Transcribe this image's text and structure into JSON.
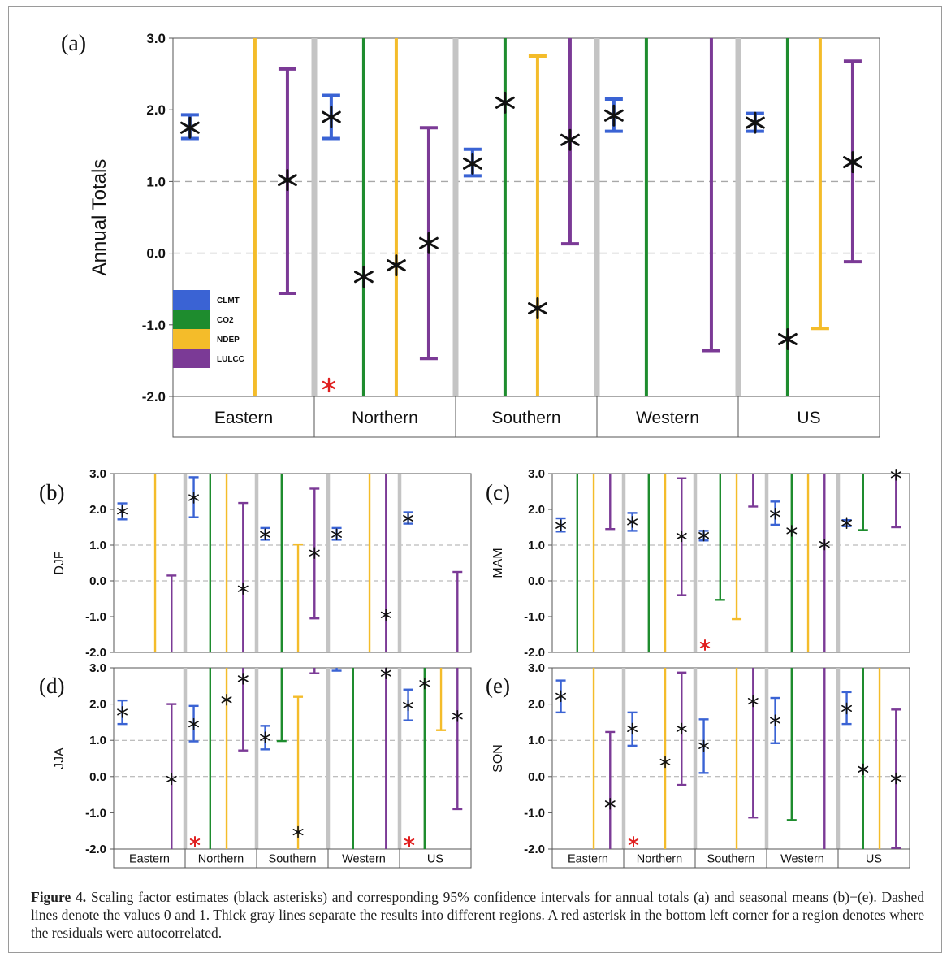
{
  "colors": {
    "CLMT": "#3a63d4",
    "CO2": "#1e8c2e",
    "NDEP": "#f4bc2a",
    "LULCC": "#7b3a96",
    "separator": "#c4c4c4",
    "asterisk": "#111111",
    "autocorr": "#e02020"
  },
  "caption": {
    "label": "Figure 4.",
    "text": "Scaling factor estimates (black asterisks) and corresponding 95% confidence intervals for annual totals (a) and seasonal means (b)−(e). Dashed lines denote the values 0 and 1. Thick gray lines separate the results into different regions. A red asterisk in the bottom left corner for a region denotes where the residuals were autocorrelated."
  },
  "chart_data": [
    {
      "id": "a",
      "panel_label": "(a)",
      "type": "errorbar",
      "ylabel": "Annual Totals",
      "ylim": [
        -2,
        3
      ],
      "yticks": [
        "-2.0",
        "-1.0",
        "0.0",
        "1.0",
        "2.0",
        "3.0"
      ],
      "reference_lines": [
        0,
        1
      ],
      "categories": [
        "Eastern",
        "Northern",
        "Southern",
        "Western",
        "US"
      ],
      "legend": {
        "placement": "bottom-left",
        "entries": [
          "CLMT",
          "CO2",
          "NDEP",
          "LULCC"
        ]
      },
      "autocorrelated": [
        false,
        true,
        false,
        false,
        false
      ],
      "series": [
        {
          "name": "CLMT",
          "est": [
            1.75,
            1.9,
            1.25,
            1.92,
            1.82
          ],
          "low": [
            1.6,
            1.6,
            1.08,
            1.7,
            1.7
          ],
          "high": [
            1.93,
            2.2,
            1.45,
            2.15,
            1.95
          ]
        },
        {
          "name": "CO2",
          "est": [
            null,
            -0.33,
            2.1,
            null,
            -1.2
          ],
          "low": [
            null,
            -2,
            -2,
            -2,
            -2
          ],
          "high": [
            null,
            3,
            3,
            3,
            3
          ]
        },
        {
          "name": "NDEP",
          "est": [
            null,
            -0.17,
            -0.77,
            null,
            null
          ],
          "low": [
            -2,
            -2,
            -2,
            null,
            -1.05
          ],
          "high": [
            3,
            3,
            2.75,
            null,
            3
          ]
        },
        {
          "name": "LULCC",
          "est": [
            1.02,
            0.14,
            1.58,
            null,
            1.27
          ],
          "low": [
            -0.56,
            -1.47,
            0.13,
            -1.36,
            -0.12
          ],
          "high": [
            2.57,
            1.75,
            3,
            3,
            2.68
          ]
        }
      ]
    },
    {
      "id": "b",
      "panel_label": "(b)",
      "type": "errorbar",
      "ylabel": "DJF",
      "ylim": [
        -2,
        3
      ],
      "yticks": [
        "-2.0",
        "-1.0",
        "0.0",
        "1.0",
        "2.0",
        "3.0"
      ],
      "reference_lines": [
        0,
        1
      ],
      "categories": [
        "Eastern",
        "Northern",
        "Southern",
        "Western",
        "US"
      ],
      "autocorrelated": [
        false,
        false,
        false,
        false,
        false
      ],
      "series": [
        {
          "name": "CLMT",
          "est": [
            1.95,
            2.33,
            1.3,
            1.3,
            1.75
          ],
          "low": [
            1.72,
            1.78,
            1.15,
            1.15,
            1.6
          ],
          "high": [
            2.17,
            2.9,
            1.48,
            1.48,
            1.92
          ]
        },
        {
          "name": "CO2",
          "est": [
            null,
            null,
            null,
            null,
            null
          ],
          "low": [
            null,
            -2,
            -2,
            null,
            null
          ],
          "high": [
            null,
            3,
            3,
            null,
            null
          ]
        },
        {
          "name": "NDEP",
          "est": [
            null,
            null,
            null,
            null,
            null
          ],
          "low": [
            -2,
            -2,
            -2,
            -2,
            null
          ],
          "high": [
            3,
            3,
            1.02,
            3,
            null
          ]
        },
        {
          "name": "LULCC",
          "est": [
            null,
            -0.22,
            0.78,
            -0.95,
            null
          ],
          "low": [
            -2,
            -2,
            -1.05,
            -2,
            -2
          ],
          "high": [
            0.15,
            2.18,
            2.58,
            3,
            0.25
          ]
        }
      ]
    },
    {
      "id": "c",
      "panel_label": "(c)",
      "type": "errorbar",
      "ylabel": "MAM",
      "ylim": [
        -2,
        3
      ],
      "yticks": [
        "-2.0",
        "-1.0",
        "0.0",
        "1.0",
        "2.0",
        "3.0"
      ],
      "reference_lines": [
        0,
        1
      ],
      "categories": [
        "Eastern",
        "Northern",
        "Southern",
        "Western",
        "US"
      ],
      "autocorrelated": [
        false,
        false,
        true,
        false,
        false
      ],
      "series": [
        {
          "name": "CLMT",
          "est": [
            1.55,
            1.65,
            1.27,
            1.88,
            1.62
          ],
          "low": [
            1.38,
            1.4,
            1.13,
            1.57,
            1.53
          ],
          "high": [
            1.75,
            1.9,
            1.4,
            2.22,
            1.7
          ]
        },
        {
          "name": "CO2",
          "est": [
            null,
            null,
            null,
            1.4,
            null
          ],
          "low": [
            -2,
            -2,
            -0.53,
            -2,
            1.42
          ],
          "high": [
            3,
            3,
            3,
            3,
            3
          ]
        },
        {
          "name": "NDEP",
          "est": [
            null,
            null,
            null,
            null,
            null
          ],
          "low": [
            -2,
            -2,
            -1.07,
            -2,
            null
          ],
          "high": [
            3,
            3,
            3,
            3,
            null
          ]
        },
        {
          "name": "LULCC",
          "est": [
            null,
            1.25,
            null,
            1.02,
            2.97
          ],
          "low": [
            1.45,
            -0.4,
            2.08,
            -2,
            1.5
          ],
          "high": [
            3,
            2.87,
            3,
            3,
            3
          ]
        }
      ]
    },
    {
      "id": "d",
      "panel_label": "(d)",
      "type": "errorbar",
      "ylabel": "JJA",
      "ylim": [
        -2,
        3
      ],
      "yticks": [
        "-2.0",
        "-1.0",
        "0.0",
        "1.0",
        "2.0",
        "3.0"
      ],
      "reference_lines": [
        0,
        1
      ],
      "categories": [
        "Eastern",
        "Northern",
        "Southern",
        "Western",
        "US"
      ],
      "autocorrelated": [
        false,
        true,
        false,
        false,
        true
      ],
      "series": [
        {
          "name": "CLMT",
          "est": [
            1.78,
            1.45,
            1.08,
            null,
            1.97
          ],
          "low": [
            1.45,
            0.97,
            0.75,
            2.92,
            1.55
          ],
          "high": [
            2.1,
            1.95,
            1.4,
            3,
            2.4
          ]
        },
        {
          "name": "CO2",
          "est": [
            null,
            null,
            null,
            null,
            2.57
          ],
          "low": [
            null,
            -2,
            0.98,
            -2,
            -2
          ],
          "high": [
            null,
            3,
            3,
            3,
            3
          ]
        },
        {
          "name": "NDEP",
          "est": [
            null,
            2.12,
            -1.53,
            null,
            null
          ],
          "low": [
            null,
            -2,
            -2,
            null,
            1.28
          ],
          "high": [
            null,
            3,
            2.2,
            null,
            3
          ]
        },
        {
          "name": "LULCC",
          "est": [
            -0.07,
            2.7,
            null,
            2.85,
            1.67
          ],
          "low": [
            -2,
            0.72,
            2.85,
            -2,
            -0.9
          ],
          "high": [
            2.0,
            3,
            3,
            3,
            3
          ]
        }
      ]
    },
    {
      "id": "e",
      "panel_label": "(e)",
      "type": "errorbar",
      "ylabel": "SON",
      "ylim": [
        -2,
        3
      ],
      "yticks": [
        "-2.0",
        "-1.0",
        "0.0",
        "1.0",
        "2.0",
        "3.0"
      ],
      "reference_lines": [
        0,
        1
      ],
      "categories": [
        "Eastern",
        "Northern",
        "Southern",
        "Western",
        "US"
      ],
      "autocorrelated": [
        false,
        true,
        false,
        false,
        false
      ],
      "series": [
        {
          "name": "CLMT",
          "est": [
            2.22,
            1.32,
            0.85,
            1.55,
            1.88
          ],
          "low": [
            1.77,
            0.85,
            0.1,
            0.92,
            1.45
          ],
          "high": [
            2.65,
            1.77,
            1.58,
            2.17,
            2.33
          ]
        },
        {
          "name": "CO2",
          "est": [
            null,
            null,
            null,
            null,
            0.2
          ],
          "low": [
            null,
            null,
            null,
            -1.2,
            -2
          ],
          "high": [
            null,
            null,
            null,
            3,
            3
          ]
        },
        {
          "name": "NDEP",
          "est": [
            null,
            0.4,
            null,
            null,
            null
          ],
          "low": [
            -2,
            -2,
            -2,
            null,
            -2
          ],
          "high": [
            3,
            3,
            3,
            null,
            3
          ]
        },
        {
          "name": "LULCC",
          "est": [
            -0.75,
            1.32,
            2.08,
            null,
            -0.05
          ],
          "low": [
            -2,
            -0.23,
            -1.13,
            -2,
            -1.97
          ],
          "high": [
            1.23,
            2.87,
            3,
            3,
            1.85
          ]
        }
      ]
    }
  ]
}
